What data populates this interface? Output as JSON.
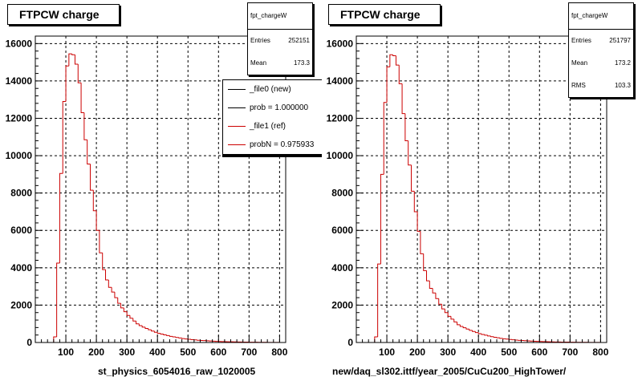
{
  "chart_data": [
    {
      "type": "bar",
      "title": "FTPCW charge",
      "xlabel": "st_physics_6054016_raw_1020005",
      "ylabel": "",
      "xlim": [
        0,
        820
      ],
      "ylim": [
        0,
        16400
      ],
      "grid": true,
      "x_ticks": [
        100,
        200,
        300,
        400,
        500,
        600,
        700,
        800
      ],
      "y_ticks": [
        0,
        2000,
        4000,
        6000,
        8000,
        10000,
        12000,
        14000,
        16000
      ],
      "stats": {
        "name": "fpt_chargeW",
        "entries_label": "Entries",
        "entries": "252151",
        "mean_label": "Mean",
        "mean": "173.3"
      },
      "legend_position": "top-right",
      "legend": [
        {
          "label": "_file0 (new)",
          "color": "#000000"
        },
        {
          "label": "prob = 1.000000",
          "color": "#000000"
        },
        {
          "label": "_file1 (ref)",
          "color": "#cc0000"
        },
        {
          "label": "probN = 0.975933",
          "color": "#cc0000"
        }
      ],
      "series": [
        {
          "color": "#cc0000",
          "bin_width": 10,
          "x": [
            50,
            60,
            70,
            80,
            90,
            100,
            110,
            120,
            130,
            140,
            150,
            160,
            170,
            180,
            190,
            200,
            210,
            220,
            230,
            240,
            250,
            260,
            270,
            280,
            290,
            300,
            310,
            320,
            330,
            340,
            350,
            360,
            370,
            380,
            390,
            400,
            410,
            420,
            430,
            440,
            450,
            460,
            470,
            480,
            490,
            500,
            510,
            520,
            530,
            540,
            550,
            560,
            570,
            580,
            590,
            600,
            610,
            620,
            630,
            640,
            650,
            660,
            670,
            680,
            690,
            700,
            710,
            720,
            730,
            740,
            750,
            760,
            770,
            780,
            790
          ],
          "values": [
            0,
            300,
            4250,
            9050,
            12900,
            14800,
            15450,
            15400,
            14900,
            13900,
            12300,
            10850,
            9550,
            8150,
            7050,
            6000,
            4800,
            3900,
            3350,
            2950,
            2700,
            2400,
            2100,
            1850,
            1650,
            1450,
            1300,
            1150,
            1000,
            900,
            820,
            750,
            680,
            610,
            550,
            490,
            450,
            410,
            370,
            330,
            300,
            270,
            240,
            210,
            190,
            170,
            150,
            140,
            120,
            110,
            100,
            90,
            80,
            70,
            60,
            55,
            50,
            45,
            40,
            35,
            30,
            28,
            25,
            22,
            20,
            18,
            16,
            14,
            12,
            10,
            9,
            8,
            7,
            6,
            5
          ]
        }
      ]
    },
    {
      "type": "bar",
      "title": "FTPCW charge",
      "xlabel": "new/daq_sl302.ittf/year_2005/CuCu200_HighTower/",
      "ylabel": "",
      "xlim": [
        0,
        820
      ],
      "ylim": [
        0,
        16400
      ],
      "grid": true,
      "x_ticks": [
        100,
        200,
        300,
        400,
        500,
        600,
        700,
        800
      ],
      "y_ticks": [
        0,
        2000,
        4000,
        6000,
        8000,
        10000,
        12000,
        14000,
        16000
      ],
      "stats": {
        "name": "fpt_chargeW",
        "entries_label": "Entries",
        "entries": "251797",
        "mean_label": "Mean",
        "mean": "173.2",
        "rms_label": "RMS",
        "rms": "103.3"
      },
      "series": [
        {
          "color": "#cc0000",
          "bin_width": 10,
          "x": [
            50,
            60,
            70,
            80,
            90,
            100,
            110,
            120,
            130,
            140,
            150,
            160,
            170,
            180,
            190,
            200,
            210,
            220,
            230,
            240,
            250,
            260,
            270,
            280,
            290,
            300,
            310,
            320,
            330,
            340,
            350,
            360,
            370,
            380,
            390,
            400,
            410,
            420,
            430,
            440,
            450,
            460,
            470,
            480,
            490,
            500,
            510,
            520,
            530,
            540,
            550,
            560,
            570,
            580,
            590,
            600,
            610,
            620,
            630,
            640,
            650,
            660,
            670,
            680,
            690,
            700,
            710,
            720,
            730,
            740,
            750,
            760,
            770,
            780,
            790
          ],
          "values": [
            0,
            300,
            4200,
            9000,
            12850,
            14750,
            15400,
            15350,
            14850,
            13850,
            12250,
            10800,
            9500,
            8100,
            7000,
            5950,
            4750,
            3850,
            3300,
            2900,
            2650,
            2350,
            2050,
            1800,
            1600,
            1400,
            1250,
            1100,
            950,
            860,
            790,
            720,
            650,
            590,
            530,
            470,
            430,
            390,
            350,
            310,
            280,
            250,
            220,
            200,
            180,
            160,
            145,
            130,
            115,
            105,
            95,
            85,
            75,
            65,
            58,
            52,
            47,
            42,
            37,
            33,
            29,
            26,
            23,
            21,
            19,
            17,
            15,
            13,
            11,
            10,
            9,
            8,
            7,
            6,
            5
          ]
        }
      ]
    }
  ]
}
